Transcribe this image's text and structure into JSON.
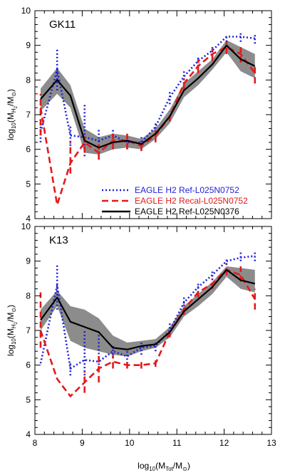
{
  "figure": {
    "xlabel_main": "log",
    "xlabel_sub": "10",
    "xlabel_paren": "(M",
    "xlabel_tot": "Tot",
    "xlabel_slash": "/M",
    "xlabel_sun": "⊙",
    "xlabel_close": ")"
  },
  "chart_data": [
    {
      "type": "line",
      "panel_label": "GK11",
      "ylabel": "log10(MH2/M⊙)",
      "xlim": [
        8,
        13
      ],
      "ylim": [
        4,
        10
      ],
      "x_ticks": [
        "8",
        "9",
        "10",
        "11",
        "12",
        "13"
      ],
      "y_ticks": [
        "4",
        "5",
        "6",
        "7",
        "8",
        "9",
        "10"
      ],
      "legend": [
        {
          "label": "EAGLE H2 Ref-L025N0752",
          "color": "#1f1fd6",
          "style": "dotted"
        },
        {
          "label": "EAGLE H2 Recal-L025N0752",
          "color": "#e31a1c",
          "style": "dashed"
        },
        {
          "label": "EAGLE H2 Ref-L025N0376",
          "color": "#000000",
          "style": "solid"
        }
      ],
      "series": [
        {
          "name": "EAGLE H2 Ref-L025N0752",
          "color": "#1f1fd6",
          "style": "dotted",
          "x": [
            8.12,
            8.47,
            8.75,
            9.05,
            9.35,
            9.65,
            9.95,
            10.25,
            10.55,
            10.85,
            11.15,
            11.45,
            11.75,
            12.05,
            12.35,
            12.65
          ],
          "y": [
            6.5,
            8.3,
            6.4,
            6.35,
            6.25,
            6.4,
            6.2,
            6.2,
            6.65,
            7.5,
            8.1,
            8.55,
            8.85,
            9.25,
            9.25,
            9.2
          ],
          "err_lo": [
            6.2,
            7.7,
            6.1,
            5.8,
            5.9,
            6.0,
            6.0,
            6.0,
            6.5,
            7.3,
            7.9,
            8.4,
            8.7,
            9.1,
            9.1,
            9.05
          ],
          "err_hi": [
            6.9,
            8.9,
            6.7,
            7.3,
            6.6,
            6.6,
            6.4,
            6.4,
            6.8,
            7.7,
            8.3,
            8.7,
            9.0,
            9.3,
            9.4,
            9.35
          ]
        },
        {
          "name": "EAGLE H2 Recal-L025N0752",
          "color": "#e31a1c",
          "style": "dashed",
          "x": [
            8.12,
            8.47,
            8.75,
            9.05,
            9.35,
            9.65,
            9.95,
            10.25,
            10.55,
            10.85,
            11.15,
            11.45,
            11.75,
            12.05,
            12.35,
            12.65
          ],
          "y": [
            7.2,
            4.4,
            5.6,
            6.2,
            5.9,
            6.25,
            6.25,
            6.1,
            6.4,
            6.95,
            7.9,
            8.4,
            8.75,
            8.95,
            8.75,
            8.2
          ],
          "err_lo": [
            6.4,
            4.4,
            5.3,
            5.9,
            5.7,
            6.0,
            6.0,
            5.95,
            6.2,
            6.8,
            7.7,
            8.2,
            8.55,
            8.75,
            8.5,
            7.9
          ],
          "err_hi": [
            7.6,
            4.4,
            6.2,
            6.4,
            6.15,
            6.45,
            6.45,
            6.25,
            6.55,
            7.1,
            8.05,
            8.6,
            8.9,
            9.1,
            8.95,
            8.45
          ]
        },
        {
          "name": "EAGLE H2 Ref-L025N0376",
          "color": "#000000",
          "style": "solid",
          "x": [
            8.12,
            8.47,
            8.75,
            9.05,
            9.35,
            9.65,
            9.95,
            10.25,
            10.55,
            10.85,
            11.15,
            11.45,
            11.75,
            12.05,
            12.35,
            12.65
          ],
          "y": [
            7.45,
            8.0,
            7.55,
            6.25,
            6.05,
            6.2,
            6.25,
            6.15,
            6.45,
            6.95,
            7.7,
            8.05,
            8.45,
            9.0,
            8.6,
            8.4
          ],
          "band_lo": [
            7.1,
            7.6,
            7.2,
            5.9,
            5.85,
            6.0,
            6.05,
            6.0,
            6.3,
            6.75,
            7.5,
            7.85,
            8.3,
            8.8,
            8.25,
            8.05
          ],
          "band_hi": [
            7.75,
            8.35,
            7.85,
            6.6,
            6.35,
            6.45,
            6.4,
            6.3,
            6.6,
            7.15,
            7.9,
            8.25,
            8.6,
            9.15,
            8.95,
            8.75
          ]
        }
      ]
    },
    {
      "type": "line",
      "panel_label": "K13",
      "ylabel": "log10(MH2/M⊙)",
      "xlim": [
        8,
        13
      ],
      "ylim": [
        4,
        10
      ],
      "x_ticks": [
        "8",
        "9",
        "10",
        "11",
        "12",
        "13"
      ],
      "y_ticks": [
        "4",
        "5",
        "6",
        "7",
        "8",
        "9",
        "10"
      ],
      "series": [
        {
          "name": "EAGLE H2 Ref-L025N0752",
          "color": "#1f1fd6",
          "style": "dotted",
          "x": [
            8.12,
            8.47,
            8.75,
            9.05,
            9.35,
            9.65,
            9.95,
            10.25,
            10.55,
            10.85,
            11.15,
            11.45,
            11.75,
            12.05,
            12.35,
            12.65
          ],
          "y": [
            6.05,
            8.3,
            5.9,
            6.15,
            6.1,
            6.4,
            6.25,
            6.5,
            6.55,
            7.0,
            7.8,
            8.25,
            8.6,
            9.0,
            9.1,
            9.15
          ],
          "err_lo": [
            6.05,
            7.6,
            5.7,
            5.6,
            5.8,
            6.2,
            6.05,
            6.3,
            6.4,
            6.85,
            7.6,
            8.1,
            8.45,
            8.9,
            9.0,
            9.0
          ],
          "err_hi": [
            6.05,
            8.9,
            6.1,
            7.0,
            7.0,
            6.6,
            6.45,
            6.7,
            6.7,
            7.2,
            8.0,
            8.4,
            8.75,
            9.1,
            9.25,
            9.3
          ]
        },
        {
          "name": "EAGLE H2 Recal-L025N0752",
          "color": "#e31a1c",
          "style": "dashed",
          "x": [
            8.12,
            8.47,
            8.75,
            9.05,
            9.35,
            9.65,
            9.95,
            10.25,
            10.55,
            10.85,
            11.15,
            11.45,
            11.75,
            12.05,
            12.35,
            12.65
          ],
          "y": [
            7.0,
            5.6,
            5.1,
            5.5,
            5.9,
            6.1,
            6.0,
            6.0,
            6.05,
            6.95,
            7.6,
            8.1,
            8.35,
            8.75,
            8.6,
            7.9
          ],
          "err_lo": [
            6.5,
            5.6,
            5.1,
            5.2,
            5.5,
            5.9,
            5.9,
            5.9,
            5.95,
            6.8,
            7.45,
            7.95,
            8.2,
            8.6,
            8.4,
            7.6
          ],
          "err_hi": [
            8.1,
            5.6,
            5.1,
            5.8,
            6.3,
            6.3,
            6.1,
            6.1,
            6.15,
            7.1,
            7.75,
            8.25,
            8.5,
            8.9,
            8.85,
            8.2
          ]
        },
        {
          "name": "EAGLE H2 Ref-L025N0376",
          "color": "#000000",
          "style": "solid",
          "x": [
            8.12,
            8.47,
            8.75,
            9.05,
            9.35,
            9.65,
            9.95,
            10.25,
            10.55,
            10.85,
            11.15,
            11.45,
            11.75,
            12.05,
            12.35,
            12.65
          ],
          "y": [
            7.3,
            7.95,
            7.25,
            7.1,
            6.95,
            6.5,
            6.45,
            6.55,
            6.6,
            6.95,
            7.55,
            7.9,
            8.25,
            8.75,
            8.45,
            8.35
          ],
          "band_lo": [
            7.0,
            7.7,
            6.7,
            6.5,
            6.4,
            6.3,
            6.25,
            6.4,
            6.5,
            6.8,
            7.4,
            7.7,
            8.05,
            8.55,
            8.2,
            8.1
          ],
          "band_hi": [
            7.6,
            8.15,
            7.7,
            7.6,
            7.35,
            6.85,
            6.65,
            6.7,
            6.75,
            7.1,
            7.7,
            8.05,
            8.4,
            8.85,
            8.8,
            8.75
          ]
        }
      ]
    }
  ]
}
